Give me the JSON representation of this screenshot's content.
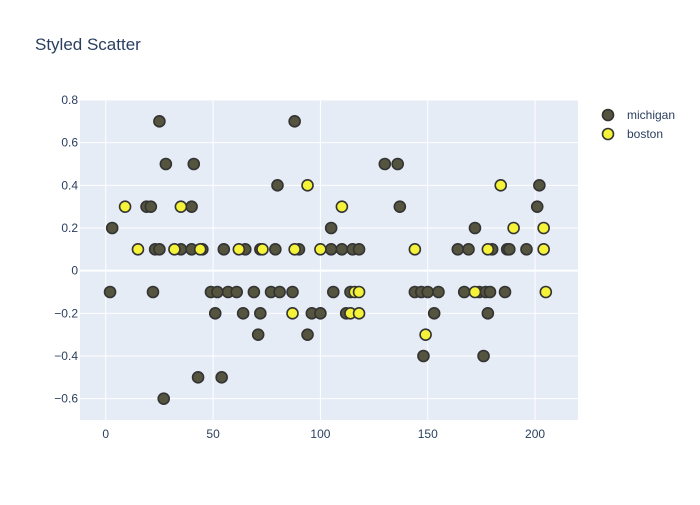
{
  "chart_data": {
    "type": "scatter",
    "title": "Styled Scatter",
    "xlabel": "",
    "ylabel": "",
    "xlim": [
      -12,
      220
    ],
    "ylim": [
      -0.7,
      0.8
    ],
    "x_ticks": [
      0,
      50,
      100,
      150,
      200
    ],
    "y_ticks": [
      -0.6,
      -0.4,
      -0.2,
      0,
      0.2,
      0.4,
      0.6,
      0.8
    ],
    "y_tick_labels": [
      "−0.6",
      "−0.4",
      "−0.2",
      "0",
      "0.2",
      "0.4",
      "0.6",
      "0.8"
    ],
    "grid": true,
    "legend_position": "top-right",
    "colors": {
      "plot_bg": "#e5ecf6",
      "grid": "#ffffff",
      "text": "#2a3f5f",
      "marker_outline": "#333333"
    },
    "series": [
      {
        "name": "michigan",
        "color": "#55553f",
        "points": [
          [
            2,
            -0.1
          ],
          [
            3,
            0.2
          ],
          [
            19,
            0.3
          ],
          [
            21,
            0.3
          ],
          [
            22,
            -0.1
          ],
          [
            23,
            0.1
          ],
          [
            25,
            0.7
          ],
          [
            25,
            0.1
          ],
          [
            27,
            -0.6
          ],
          [
            28,
            0.5
          ],
          [
            35,
            0.1
          ],
          [
            40,
            0.1
          ],
          [
            40,
            0.3
          ],
          [
            41,
            0.5
          ],
          [
            43,
            -0.5
          ],
          [
            45,
            0.1
          ],
          [
            49,
            -0.1
          ],
          [
            51,
            -0.2
          ],
          [
            52,
            -0.1
          ],
          [
            54,
            -0.5
          ],
          [
            55,
            0.1
          ],
          [
            57,
            -0.1
          ],
          [
            61,
            -0.1
          ],
          [
            64,
            -0.2
          ],
          [
            65,
            0.1
          ],
          [
            69,
            -0.1
          ],
          [
            71,
            -0.3
          ],
          [
            72,
            -0.2
          ],
          [
            72,
            0.1
          ],
          [
            77,
            -0.1
          ],
          [
            79,
            0.1
          ],
          [
            80,
            0.4
          ],
          [
            81,
            -0.1
          ],
          [
            87,
            -0.1
          ],
          [
            88,
            0.7
          ],
          [
            90,
            0.1
          ],
          [
            94,
            -0.3
          ],
          [
            96,
            -0.2
          ],
          [
            100,
            -0.2
          ],
          [
            105,
            0.2
          ],
          [
            105,
            0.1
          ],
          [
            106,
            -0.1
          ],
          [
            110,
            0.1
          ],
          [
            112,
            -0.2
          ],
          [
            114,
            -0.1
          ],
          [
            115,
            0.1
          ],
          [
            118,
            0.1
          ],
          [
            130,
            0.5
          ],
          [
            136,
            0.5
          ],
          [
            137,
            0.3
          ],
          [
            144,
            -0.1
          ],
          [
            147,
            -0.1
          ],
          [
            148,
            -0.4
          ],
          [
            150,
            -0.1
          ],
          [
            153,
            -0.2
          ],
          [
            155,
            -0.1
          ],
          [
            164,
            0.1
          ],
          [
            167,
            -0.1
          ],
          [
            169,
            0.1
          ],
          [
            172,
            0.2
          ],
          [
            174,
            -0.1
          ],
          [
            176,
            -0.4
          ],
          [
            177,
            -0.1
          ],
          [
            178,
            -0.2
          ],
          [
            179,
            -0.1
          ],
          [
            180,
            0.1
          ],
          [
            186,
            -0.1
          ],
          [
            187,
            0.1
          ],
          [
            188,
            0.1
          ],
          [
            196,
            0.1
          ],
          [
            201,
            0.3
          ],
          [
            202,
            0.4
          ]
        ]
      },
      {
        "name": "boston",
        "color": "#f5f23a",
        "points": [
          [
            9,
            0.3
          ],
          [
            15,
            0.1
          ],
          [
            32,
            0.1
          ],
          [
            35,
            0.3
          ],
          [
            44,
            0.1
          ],
          [
            62,
            0.1
          ],
          [
            73,
            0.1
          ],
          [
            87,
            -0.2
          ],
          [
            88,
            0.1
          ],
          [
            94,
            0.4
          ],
          [
            100,
            0.1
          ],
          [
            110,
            0.3
          ],
          [
            114,
            -0.2
          ],
          [
            116,
            -0.1
          ],
          [
            118,
            -0.1
          ],
          [
            118,
            -0.2
          ],
          [
            144,
            0.1
          ],
          [
            149,
            -0.3
          ],
          [
            172,
            -0.1
          ],
          [
            178,
            0.1
          ],
          [
            184,
            0.4
          ],
          [
            190,
            0.2
          ],
          [
            204,
            0.2
          ],
          [
            204,
            0.1
          ],
          [
            205,
            -0.1
          ]
        ]
      }
    ]
  }
}
